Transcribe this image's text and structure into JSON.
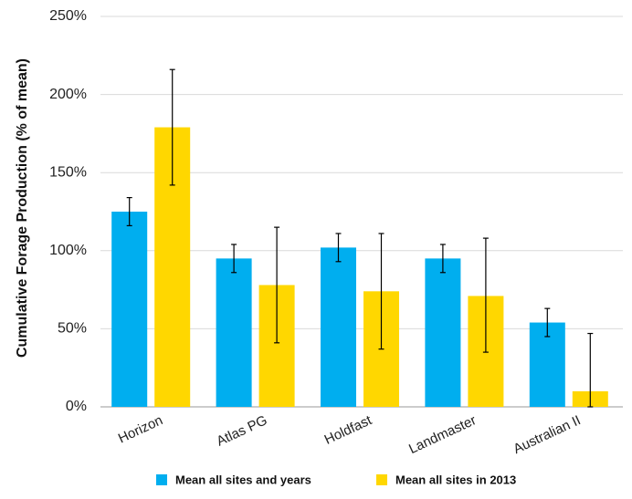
{
  "chart_data": {
    "type": "bar",
    "title": "",
    "xlabel": "",
    "ylabel": "Cumulative Forage Production (% of mean)",
    "ylim": [
      0,
      250
    ],
    "yticks": [
      0,
      50,
      100,
      150,
      200,
      250
    ],
    "ytick_labels": [
      "0%",
      "50%",
      "100%",
      "150%",
      "200%",
      "250%"
    ],
    "grid": "horizontal",
    "legend_position": "bottom",
    "categories": [
      "Horizon",
      "Atlas PG",
      "Holdfast",
      "Landmaster",
      "Australian II"
    ],
    "series": [
      {
        "name": "Mean all sites and years",
        "color": "#00AEEF",
        "values": [
          125,
          95,
          102,
          95,
          54
        ],
        "error_low": [
          116,
          86,
          93,
          86,
          45
        ],
        "error_high": [
          134,
          104,
          111,
          104,
          63
        ]
      },
      {
        "name": "Mean all sites in 2013",
        "color": "#FFD700",
        "values": [
          179,
          78,
          74,
          71,
          10
        ],
        "error_low": [
          142,
          41,
          37,
          35,
          0
        ],
        "error_high": [
          216,
          115,
          111,
          108,
          47
        ]
      }
    ]
  }
}
